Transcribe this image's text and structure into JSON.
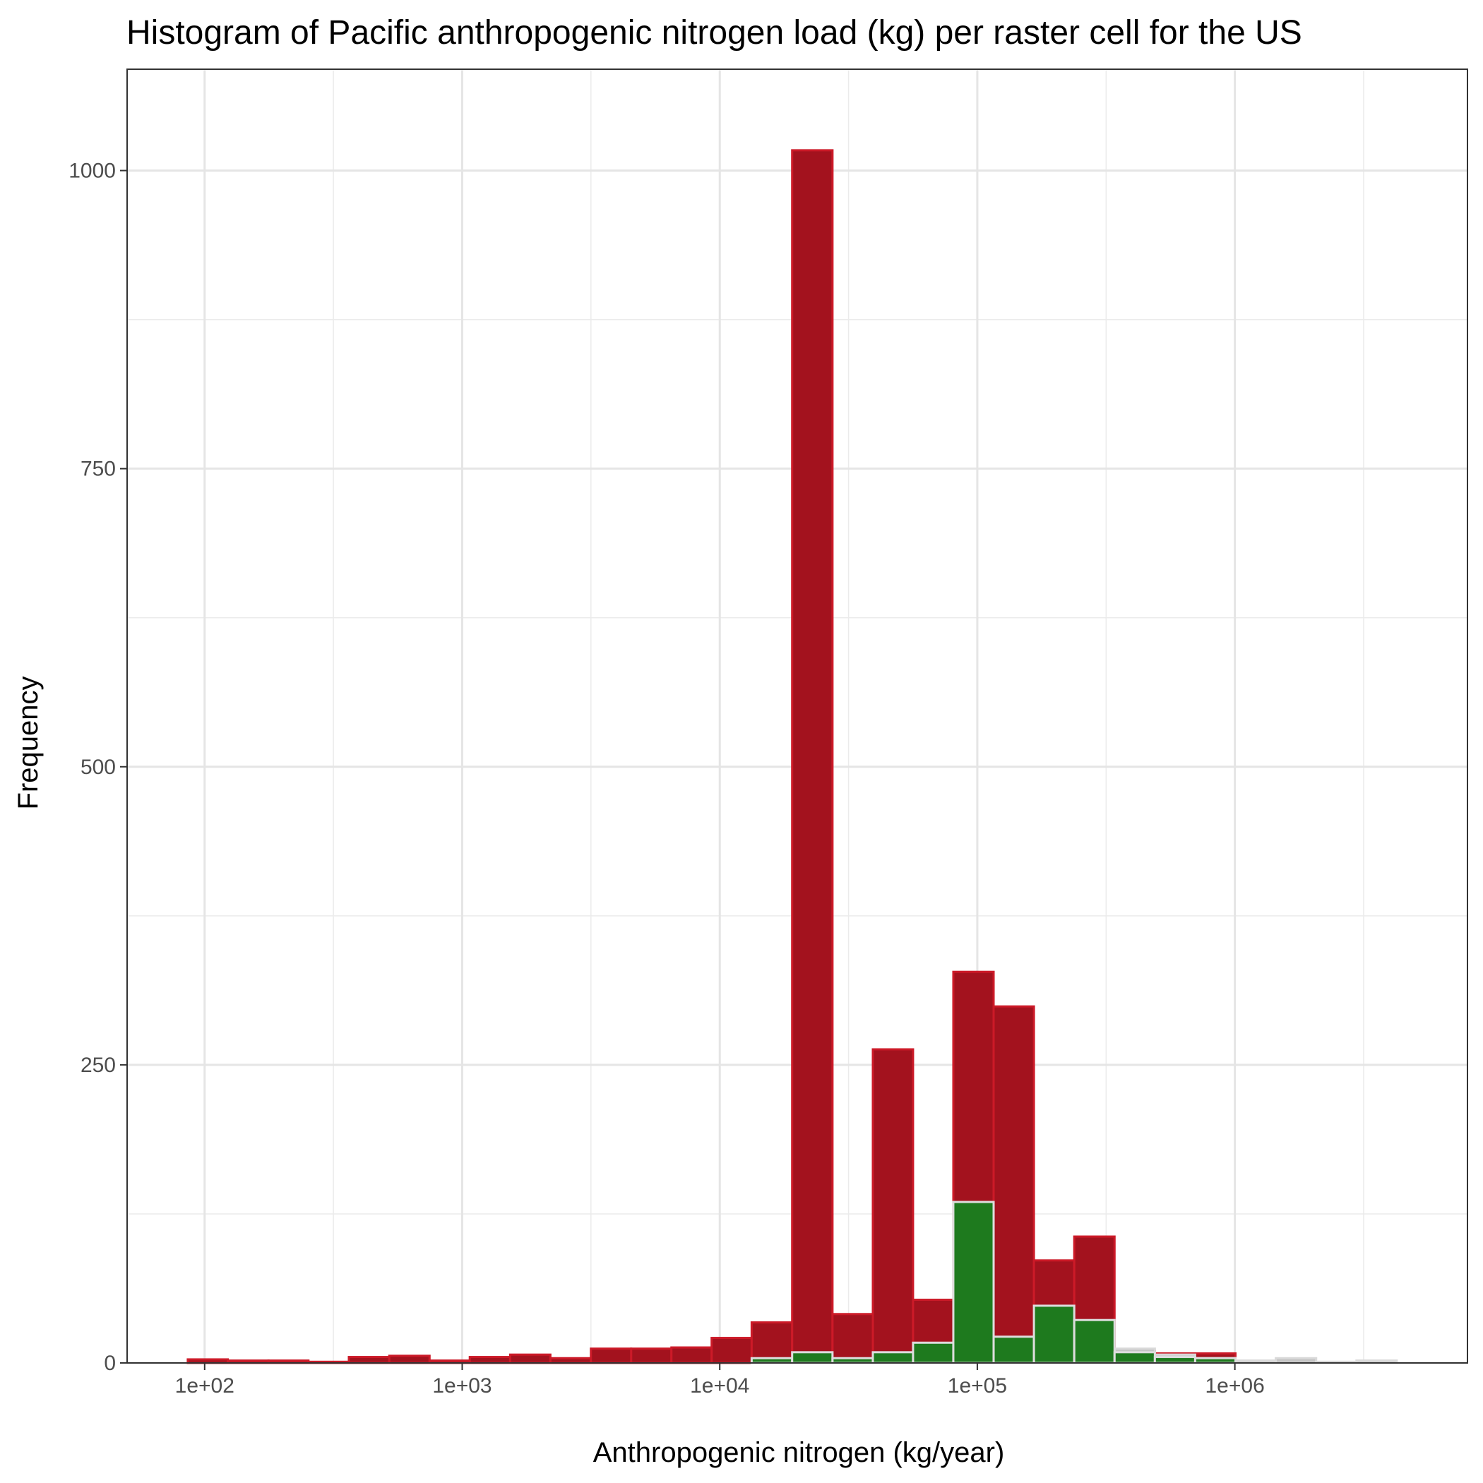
{
  "chart_data": {
    "type": "bar",
    "title": "Histogram of Pacific anthropogenic nitrogen load (kg) per raster cell for the US",
    "xlabel": "Anthropogenic nitrogen (kg/year)",
    "ylabel": "Frequency",
    "x_scale": "log10",
    "xlim": [
      50,
      8000000
    ],
    "ylim": [
      0,
      1085
    ],
    "x_ticks": [
      {
        "value": 100,
        "label": "1e+02"
      },
      {
        "value": 1000,
        "label": "1e+03"
      },
      {
        "value": 10000,
        "label": "1e+04"
      },
      {
        "value": 100000,
        "label": "1e+05"
      },
      {
        "value": 1000000,
        "label": "1e+06"
      }
    ],
    "x_minor_ticks": [
      316.2,
      3162,
      31623,
      316228,
      3162278
    ],
    "y_ticks": [
      {
        "value": 0,
        "label": "0"
      },
      {
        "value": 250,
        "label": "250"
      },
      {
        "value": 500,
        "label": "500"
      },
      {
        "value": 750,
        "label": "750"
      },
      {
        "value": 1000,
        "label": "1000"
      }
    ],
    "y_minor_ticks": [
      125,
      375,
      625,
      875
    ],
    "grid": true,
    "legend": "none",
    "series": [
      {
        "fill": "#a3121e",
        "stroke": "#cc1a28",
        "bins": [
          {
            "x0": 86,
            "x1": 123,
            "value": 3
          },
          {
            "x0": 123,
            "x1": 177,
            "value": 2
          },
          {
            "x0": 177,
            "x1": 253,
            "value": 2
          },
          {
            "x0": 253,
            "x1": 363,
            "value": 1
          },
          {
            "x0": 363,
            "x1": 521,
            "value": 5
          },
          {
            "x0": 521,
            "x1": 747,
            "value": 6
          },
          {
            "x0": 747,
            "x1": 1070,
            "value": 2
          },
          {
            "x0": 1070,
            "x1": 1535,
            "value": 5
          },
          {
            "x0": 1535,
            "x1": 2200,
            "value": 7
          },
          {
            "x0": 2200,
            "x1": 3160,
            "value": 4
          },
          {
            "x0": 3160,
            "x1": 4530,
            "value": 12
          },
          {
            "x0": 4530,
            "x1": 6490,
            "value": 12
          },
          {
            "x0": 6490,
            "x1": 9300,
            "value": 13
          },
          {
            "x0": 9300,
            "x1": 13300,
            "value": 21
          },
          {
            "x0": 13300,
            "x1": 19100,
            "value": 34
          },
          {
            "x0": 19100,
            "x1": 27400,
            "value": 1017
          },
          {
            "x0": 27400,
            "x1": 39300,
            "value": 41
          },
          {
            "x0": 39300,
            "x1": 56300,
            "value": 263
          },
          {
            "x0": 56300,
            "x1": 80700,
            "value": 53
          },
          {
            "x0": 80700,
            "x1": 115700,
            "value": 328
          },
          {
            "x0": 115700,
            "x1": 165900,
            "value": 299
          },
          {
            "x0": 165900,
            "x1": 237900,
            "value": 86
          },
          {
            "x0": 237900,
            "x1": 341100,
            "value": 106
          },
          {
            "x0": 341100,
            "x1": 489100,
            "value": 10
          },
          {
            "x0": 489100,
            "x1": 701300,
            "value": 8
          },
          {
            "x0": 701300,
            "x1": 1005600,
            "value": 8
          }
        ]
      },
      {
        "fill": "#c4c4c4",
        "stroke": "#d9d9d9",
        "bins": [
          {
            "x0": 341100,
            "x1": 489100,
            "value": 12
          },
          {
            "x0": 489100,
            "x1": 701300,
            "value": 7
          },
          {
            "x0": 701300,
            "x1": 1005600,
            "value": 4
          },
          {
            "x0": 1005600,
            "x1": 1442000,
            "value": 2
          },
          {
            "x0": 1442000,
            "x1": 2068000,
            "value": 4
          },
          {
            "x0": 2068000,
            "x1": 2965000,
            "value": 1
          },
          {
            "x0": 2965000,
            "x1": 4251000,
            "value": 2
          }
        ]
      },
      {
        "fill": "#1e7a1e",
        "stroke": "#dddddd",
        "bins": [
          {
            "x0": 13300,
            "x1": 19100,
            "value": 4
          },
          {
            "x0": 19100,
            "x1": 27400,
            "value": 9
          },
          {
            "x0": 27400,
            "x1": 39300,
            "value": 4
          },
          {
            "x0": 39300,
            "x1": 56300,
            "value": 9
          },
          {
            "x0": 56300,
            "x1": 80700,
            "value": 17
          },
          {
            "x0": 80700,
            "x1": 115700,
            "value": 135
          },
          {
            "x0": 115700,
            "x1": 165900,
            "value": 22
          },
          {
            "x0": 165900,
            "x1": 237900,
            "value": 48
          },
          {
            "x0": 237900,
            "x1": 341100,
            "value": 36
          },
          {
            "x0": 341100,
            "x1": 489100,
            "value": 9
          },
          {
            "x0": 489100,
            "x1": 701300,
            "value": 5
          },
          {
            "x0": 701300,
            "x1": 1005600,
            "value": 4
          }
        ]
      }
    ]
  }
}
